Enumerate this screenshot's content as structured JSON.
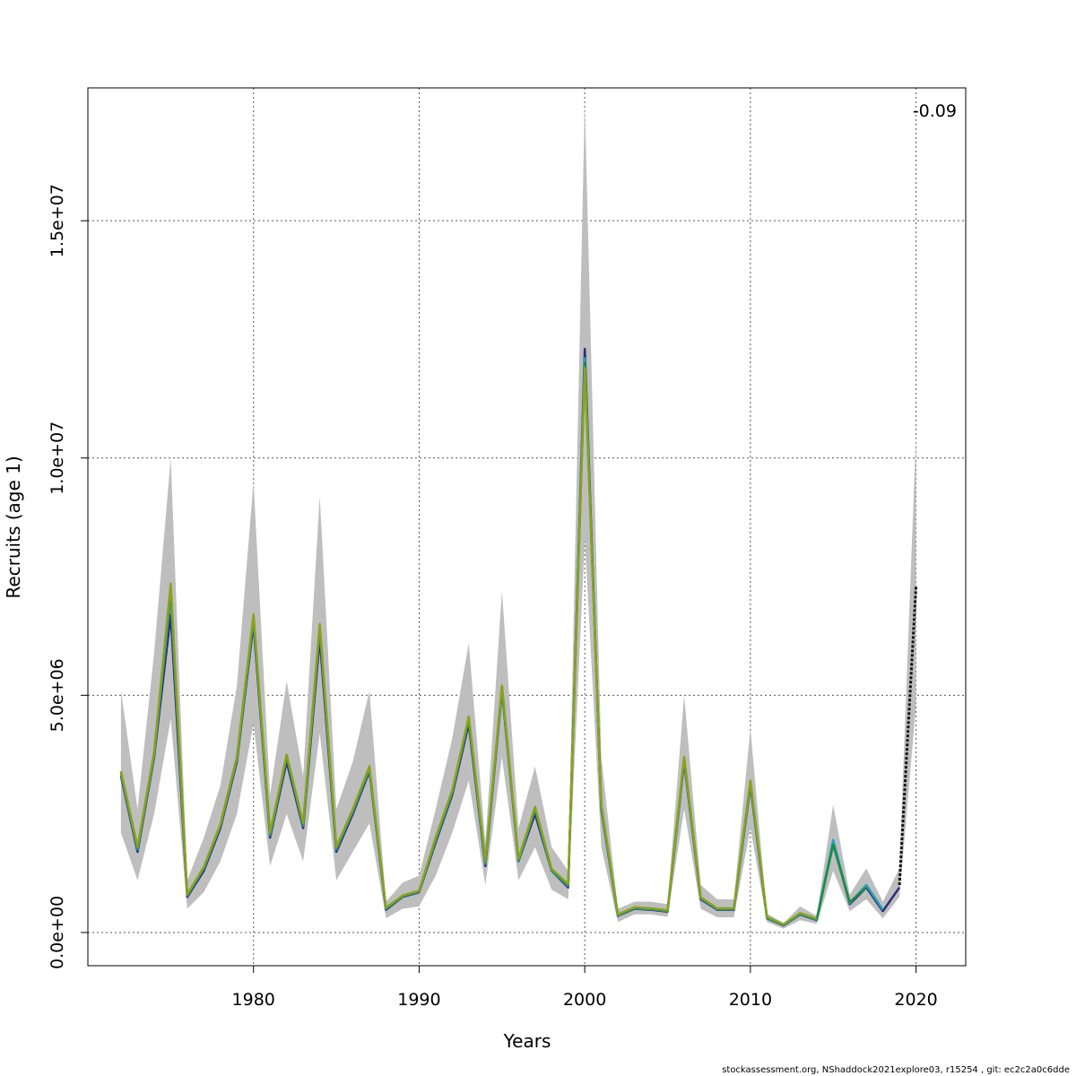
{
  "chart_data": {
    "type": "line",
    "xlabel": "Years",
    "ylabel": "Recruits (age 1)",
    "xlim": [
      1970,
      2023
    ],
    "ylim": [
      -700000,
      17800000
    ],
    "x_ticks": [
      1980,
      1990,
      2000,
      2010,
      2020
    ],
    "x_tick_labels": [
      "1980",
      "1990",
      "2000",
      "2010",
      "2020"
    ],
    "y_ticks": [
      0,
      5000000,
      10000000,
      15000000
    ],
    "y_tick_labels": [
      "0.0e+00",
      "5.0e+06",
      "1.0e+07",
      "1.5e+07"
    ],
    "grid": true,
    "annotation": "-0.09",
    "band": {
      "x": [
        1972,
        1973,
        1974,
        1975,
        1976,
        1977,
        1978,
        1979,
        1980,
        1981,
        1982,
        1983,
        1984,
        1985,
        1986,
        1987,
        1988,
        1989,
        1990,
        1991,
        1992,
        1993,
        1994,
        1995,
        1996,
        1997,
        1998,
        1999,
        2000,
        2001,
        2002,
        2003,
        2004,
        2005,
        2006,
        2007,
        2008,
        2009,
        2010,
        2011,
        2012,
        2013,
        2014,
        2015,
        2016,
        2017,
        2018,
        2019,
        2020
      ],
      "lower": [
        2100000,
        1100000,
        2500000,
        4500000,
        500000,
        850000,
        1500000,
        2500000,
        4400000,
        1400000,
        2500000,
        1500000,
        4200000,
        1100000,
        1700000,
        2300000,
        300000,
        500000,
        550000,
        1200000,
        2100000,
        3200000,
        1000000,
        3700000,
        1100000,
        1800000,
        900000,
        700000,
        8300000,
        1800000,
        220000,
        380000,
        380000,
        330000,
        2600000,
        500000,
        320000,
        320000,
        2200000,
        220000,
        80000,
        260000,
        180000,
        1300000,
        450000,
        700000,
        300000,
        750000,
        4800000
      ],
      "upper": [
        5100000,
        2600000,
        5900000,
        10000000,
        1100000,
        2000000,
        3100000,
        5200000,
        9500000,
        2900000,
        5300000,
        3300000,
        9200000,
        2600000,
        3600000,
        5100000,
        650000,
        1050000,
        1200000,
        2600000,
        4100000,
        6100000,
        1900000,
        7200000,
        2200000,
        3500000,
        1800000,
        1300000,
        17500000,
        3700000,
        500000,
        650000,
        650000,
        600000,
        5000000,
        1000000,
        700000,
        700000,
        4300000,
        400000,
        200000,
        550000,
        350000,
        2700000,
        800000,
        1350000,
        650000,
        1350000,
        10500000
      ]
    },
    "series": [
      {
        "color": "#2b2d7a",
        "x": [
          1972,
          1973,
          1974,
          1975,
          1976,
          1977,
          1978,
          1979,
          1980,
          1981,
          1982,
          1983,
          1984,
          1985,
          1986,
          1987,
          1988,
          1989,
          1990,
          1991,
          1992,
          1993,
          1994,
          1995,
          1996,
          1997,
          1998,
          1999,
          2000,
          2001,
          2002,
          2003,
          2004,
          2005,
          2006,
          2007,
          2008,
          2009,
          2010,
          2011,
          2012,
          2013,
          2014,
          2015,
          2016,
          2017,
          2018,
          2019
        ],
        "values": [
          3300000,
          1700000,
          3700000,
          6700000,
          750000,
          1300000,
          2200000,
          3600000,
          6500000,
          2000000,
          3600000,
          2200000,
          6200000,
          1700000,
          2500000,
          3400000,
          480000,
          750000,
          850000,
          1900000,
          2900000,
          4400000,
          1400000,
          5100000,
          1500000,
          2500000,
          1300000,
          950000,
          12300000,
          2600000,
          350000,
          500000,
          480000,
          440000,
          3600000,
          700000,
          480000,
          480000,
          3100000,
          300000,
          150000,
          380000,
          260000,
          1900000,
          600000,
          950000,
          450000,
          950000
        ]
      },
      {
        "color": "#26a0b5",
        "x": [
          1972,
          1973,
          1974,
          1975,
          1976,
          1977,
          1978,
          1979,
          1980,
          1981,
          1982,
          1983,
          1984,
          1985,
          1986,
          1987,
          1988,
          1989,
          1990,
          1991,
          1992,
          1993,
          1994,
          1995,
          1996,
          1997,
          1998,
          1999,
          2000,
          2001,
          2002,
          2003,
          2004,
          2005,
          2006,
          2007,
          2008,
          2009,
          2010,
          2011,
          2012,
          2013,
          2014,
          2015,
          2016,
          2017,
          2018
        ],
        "values": [
          3350000,
          1750000,
          3750000,
          7100000,
          780000,
          1350000,
          2250000,
          3650000,
          6600000,
          2050000,
          3700000,
          2250000,
          6400000,
          1750000,
          2550000,
          3450000,
          500000,
          760000,
          860000,
          1950000,
          2950000,
          4500000,
          1450000,
          5150000,
          1500000,
          2600000,
          1300000,
          980000,
          12100000,
          2650000,
          360000,
          510000,
          490000,
          450000,
          3650000,
          720000,
          490000,
          490000,
          3150000,
          310000,
          160000,
          390000,
          270000,
          1950000,
          620000,
          1000000,
          480000
        ]
      },
      {
        "color": "#1e8c46",
        "x": [
          1972,
          1973,
          1974,
          1975,
          1976,
          1977,
          1978,
          1979,
          1980,
          1981,
          1982,
          1983,
          1984,
          1985,
          1986,
          1987,
          1988,
          1989,
          1990,
          1991,
          1992,
          1993,
          1994,
          1995,
          1996,
          1997,
          1998,
          1999,
          2000,
          2001,
          2002,
          2003,
          2004,
          2005,
          2006,
          2007,
          2008,
          2009,
          2010,
          2011,
          2012,
          2013,
          2014,
          2015,
          2016,
          2017
        ],
        "values": [
          3380000,
          1780000,
          3780000,
          7250000,
          790000,
          1370000,
          2270000,
          3680000,
          6650000,
          2080000,
          3720000,
          2280000,
          6450000,
          1780000,
          2580000,
          3480000,
          510000,
          770000,
          870000,
          1980000,
          2980000,
          4520000,
          1480000,
          5180000,
          1520000,
          2620000,
          1320000,
          1000000,
          12000000,
          2680000,
          370000,
          520000,
          500000,
          460000,
          3680000,
          730000,
          500000,
          500000,
          3180000,
          320000,
          165000,
          400000,
          280000,
          1850000,
          640000,
          950000
        ]
      },
      {
        "color": "#8aa21c",
        "x": [
          1972,
          1973,
          1974,
          1975,
          1976,
          1977,
          1978,
          1979,
          1980,
          1981,
          1982,
          1983,
          1984,
          1985,
          1986,
          1987,
          1988,
          1989,
          1990,
          1991,
          1992,
          1993,
          1994,
          1995,
          1996,
          1997,
          1998,
          1999,
          2000,
          2001,
          2002,
          2003,
          2004,
          2005,
          2006,
          2007,
          2008,
          2009,
          2010,
          2011,
          2012,
          2013,
          2014
        ],
        "values": [
          3400000,
          1800000,
          3800000,
          7350000,
          800000,
          1380000,
          2280000,
          3700000,
          6700000,
          2100000,
          3750000,
          2300000,
          6500000,
          1800000,
          2600000,
          3500000,
          520000,
          780000,
          880000,
          2000000,
          3000000,
          4550000,
          1500000,
          5200000,
          1550000,
          2650000,
          1340000,
          1020000,
          11900000,
          2700000,
          380000,
          530000,
          510000,
          470000,
          3700000,
          740000,
          510000,
          510000,
          3200000,
          330000,
          170000,
          410000,
          290000
        ]
      },
      {
        "color": "#111111",
        "dashed": true,
        "x": [
          2019,
          2020
        ],
        "values": [
          1000000,
          7300000
        ]
      }
    ]
  },
  "footer": "stockassessment.org, NShaddock2021explore03, r15254 , git: ec2c2a0c6dde"
}
